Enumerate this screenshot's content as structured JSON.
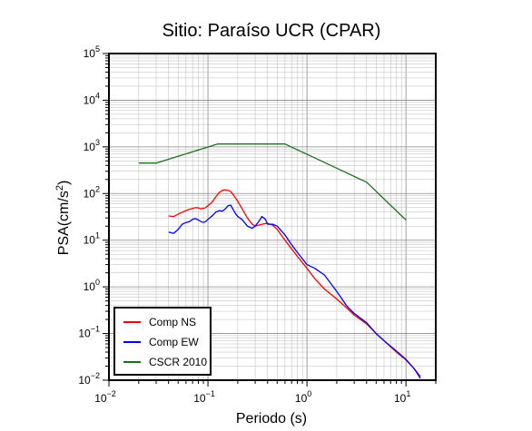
{
  "chart_data": {
    "type": "line",
    "title": "Sitio: Paraíso UCR (CPAR)",
    "xlabel": "Periodo (s)",
    "ylabel_main": "PSA(cm/s",
    "ylabel_sup": "2",
    "ylabel_end": ")",
    "x_scale": "log",
    "y_scale": "log",
    "xlim": [
      0.01,
      20
    ],
    "ylim": [
      0.01,
      100000
    ],
    "grid": true,
    "legend_position": "bottom-left",
    "x_ticks": [
      {
        "base": "10",
        "exp": "−2",
        "value": 0.01
      },
      {
        "base": "10",
        "exp": "−1",
        "value": 0.1
      },
      {
        "base": "10",
        "exp": "0",
        "value": 1
      },
      {
        "base": "10",
        "exp": "1",
        "value": 10
      }
    ],
    "y_ticks": [
      {
        "base": "10",
        "exp": "−2",
        "value": 0.01
      },
      {
        "base": "10",
        "exp": "−1",
        "value": 0.1
      },
      {
        "base": "10",
        "exp": "0",
        "value": 1
      },
      {
        "base": "10",
        "exp": "1",
        "value": 10
      },
      {
        "base": "10",
        "exp": "2",
        "value": 100
      },
      {
        "base": "10",
        "exp": "3",
        "value": 1000
      },
      {
        "base": "10",
        "exp": "4",
        "value": 10000
      },
      {
        "base": "10",
        "exp": "5",
        "value": 100000
      }
    ],
    "series": [
      {
        "name": "Comp NS",
        "color": "#ff0000",
        "points": [
          [
            0.04,
            33
          ],
          [
            0.045,
            32
          ],
          [
            0.05,
            36
          ],
          [
            0.055,
            40
          ],
          [
            0.06,
            43
          ],
          [
            0.065,
            46
          ],
          [
            0.07,
            48
          ],
          [
            0.075,
            50
          ],
          [
            0.08,
            49
          ],
          [
            0.085,
            47
          ],
          [
            0.09,
            48
          ],
          [
            0.095,
            50
          ],
          [
            0.1,
            55
          ],
          [
            0.11,
            65
          ],
          [
            0.12,
            85
          ],
          [
            0.13,
            105
          ],
          [
            0.14,
            117
          ],
          [
            0.15,
            120
          ],
          [
            0.16,
            117
          ],
          [
            0.17,
            110
          ],
          [
            0.18,
            95
          ],
          [
            0.19,
            80
          ],
          [
            0.2,
            68
          ],
          [
            0.22,
            48
          ],
          [
            0.25,
            30
          ],
          [
            0.28,
            22
          ],
          [
            0.3,
            20
          ],
          [
            0.35,
            22
          ],
          [
            0.4,
            23
          ],
          [
            0.45,
            21
          ],
          [
            0.5,
            17
          ],
          [
            0.6,
            10
          ],
          [
            0.7,
            6.5
          ],
          [
            0.8,
            4.5
          ],
          [
            1,
            2.5
          ],
          [
            1.2,
            1.5
          ],
          [
            1.5,
            0.9
          ],
          [
            2,
            0.55
          ],
          [
            2.5,
            0.36
          ],
          [
            3,
            0.25
          ],
          [
            4,
            0.16
          ],
          [
            5,
            0.1
          ],
          [
            6,
            0.07
          ],
          [
            8,
            0.04
          ],
          [
            10,
            0.027
          ],
          [
            12,
            0.018
          ],
          [
            14,
            0.012
          ]
        ]
      },
      {
        "name": "Comp EW",
        "color": "#0000ff",
        "points": [
          [
            0.04,
            15
          ],
          [
            0.045,
            14
          ],
          [
            0.05,
            17
          ],
          [
            0.055,
            22
          ],
          [
            0.06,
            24
          ],
          [
            0.065,
            25
          ],
          [
            0.07,
            28
          ],
          [
            0.075,
            29
          ],
          [
            0.08,
            27
          ],
          [
            0.085,
            25
          ],
          [
            0.09,
            24
          ],
          [
            0.095,
            25
          ],
          [
            0.1,
            28
          ],
          [
            0.11,
            33
          ],
          [
            0.12,
            40
          ],
          [
            0.13,
            43
          ],
          [
            0.14,
            42
          ],
          [
            0.15,
            47
          ],
          [
            0.16,
            55
          ],
          [
            0.17,
            56
          ],
          [
            0.18,
            45
          ],
          [
            0.19,
            37
          ],
          [
            0.2,
            32
          ],
          [
            0.22,
            28
          ],
          [
            0.25,
            20
          ],
          [
            0.28,
            18
          ],
          [
            0.3,
            20
          ],
          [
            0.33,
            26
          ],
          [
            0.35,
            32
          ],
          [
            0.38,
            28
          ],
          [
            0.4,
            22
          ],
          [
            0.45,
            22
          ],
          [
            0.5,
            20
          ],
          [
            0.6,
            13
          ],
          [
            0.7,
            8
          ],
          [
            0.8,
            5.5
          ],
          [
            1,
            3
          ],
          [
            1.2,
            2.5
          ],
          [
            1.5,
            1.8
          ],
          [
            2,
            0.8
          ],
          [
            2.5,
            0.4
          ],
          [
            3,
            0.27
          ],
          [
            4,
            0.17
          ],
          [
            5,
            0.1
          ],
          [
            6,
            0.07
          ],
          [
            8,
            0.042
          ],
          [
            10,
            0.028
          ],
          [
            12,
            0.018
          ],
          [
            14,
            0.011
          ]
        ]
      },
      {
        "name": "CSCR 2010",
        "color": "#1e6e1e",
        "points": [
          [
            0.02,
            450
          ],
          [
            0.03,
            450
          ],
          [
            0.125,
            1150
          ],
          [
            0.6,
            1150
          ],
          [
            4,
            175
          ],
          [
            10,
            27
          ]
        ]
      }
    ]
  }
}
